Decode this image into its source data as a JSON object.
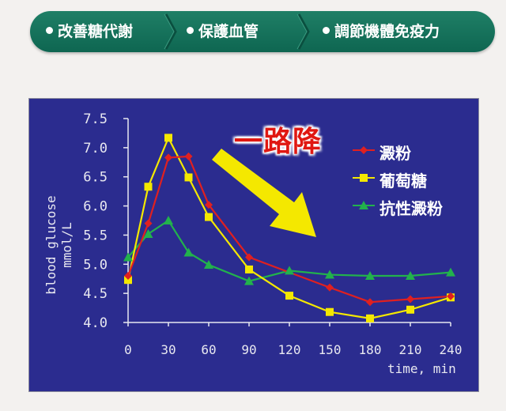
{
  "banner": {
    "items": [
      "改善糖代謝",
      "保護血管",
      "調節機體免疫力"
    ]
  },
  "callout": "一路降",
  "chart_data": {
    "type": "line",
    "title": "",
    "xlabel": "time, min",
    "ylabel": [
      "blood glucose",
      "mmol/L"
    ],
    "x_ticks": [
      0,
      30,
      60,
      90,
      120,
      150,
      180,
      210,
      240
    ],
    "y_ticks": [
      "4.0",
      "4.5",
      "5.0",
      "5.5",
      "6.0",
      "6.5",
      "7.0",
      "7.5"
    ],
    "xlim": [
      0,
      240
    ],
    "ylim": [
      4.0,
      7.5
    ],
    "grid": false,
    "legend_position": "right",
    "series": [
      {
        "name": "澱粉",
        "color": "#e02020",
        "marker": "diamond",
        "x": [
          0,
          15,
          30,
          45,
          60,
          90,
          150,
          180,
          210,
          240
        ],
        "y": [
          4.8,
          5.7,
          6.83,
          6.85,
          6.02,
          5.12,
          4.6,
          4.35,
          4.4,
          4.45
        ]
      },
      {
        "name": "葡萄糖",
        "color": "#f4e800",
        "marker": "square",
        "x": [
          0,
          15,
          30,
          45,
          60,
          90,
          120,
          150,
          180,
          210,
          240
        ],
        "y": [
          4.73,
          6.33,
          7.17,
          6.49,
          5.81,
          4.91,
          4.46,
          4.18,
          4.07,
          4.22,
          4.43
        ]
      },
      {
        "name": "抗性澱粉",
        "color": "#22b24c",
        "marker": "triangle",
        "x": [
          0,
          15,
          30,
          45,
          60,
          90,
          120,
          150,
          180,
          210,
          240
        ],
        "y": [
          5.12,
          5.52,
          5.75,
          5.2,
          4.99,
          4.71,
          4.89,
          4.82,
          4.8,
          4.8,
          4.86
        ]
      }
    ],
    "annotations": [
      "一路降"
    ],
    "arrow_color": "#f4e800"
  }
}
